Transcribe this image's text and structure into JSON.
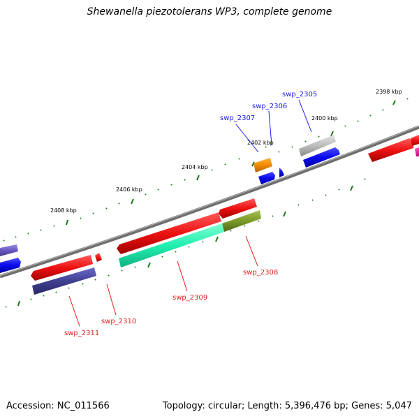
{
  "title": "Shewanella piezotolerans WP3, complete genome",
  "footer": {
    "accession": "Accession: NC_011566",
    "summary": "Topology: circular; Length: 5,396,476 bp; Genes: 5,047"
  },
  "tick_labels": [
    "2408 kbp",
    "2406 kbp",
    "2404 kbp",
    "2402 kbp",
    "2400 kbp",
    "2398 kbp"
  ],
  "genes": [
    {
      "name": "swp_2305",
      "strand": "+",
      "color": "#1a1aee"
    },
    {
      "name": "swp_2306",
      "strand": "+",
      "color": "#1a1aee"
    },
    {
      "name": "swp_2307",
      "strand": "+",
      "color": "#1a1aee"
    },
    {
      "name": "swp_2308",
      "strand": "-",
      "color": "#e21a1a"
    },
    {
      "name": "swp_2309",
      "strand": "-",
      "color": "#e21a1a"
    },
    {
      "name": "swp_2310",
      "strand": "-",
      "color": "#e21a1a"
    },
    {
      "name": "swp_2311",
      "strand": "-",
      "color": "#e21a1a"
    }
  ],
  "colors": {
    "plus_strand": "#0000ee",
    "minus_strand": "#ee1111",
    "backbone": "#6e6e6e",
    "ticks": "#1a7a1a"
  }
}
